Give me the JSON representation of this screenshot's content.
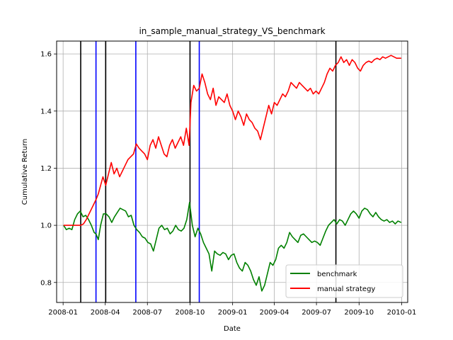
{
  "chart_data": {
    "type": "line",
    "title": "in_sample_manual_strategy_VS_benchmark",
    "xlabel": "Date",
    "ylabel": "Cumulative Return",
    "xlim": [
      "2007-12-18",
      "2010-01-14"
    ],
    "ylim": [
      0.73,
      1.645
    ],
    "grid": true,
    "legend_position": "lower-right",
    "x_ticks": [
      {
        "date": "2008-01-01",
        "label": "2008-01"
      },
      {
        "date": "2008-04-01",
        "label": "2008-04"
      },
      {
        "date": "2008-07-01",
        "label": "2008-07"
      },
      {
        "date": "2008-10-01",
        "label": "2008-10"
      },
      {
        "date": "2009-01-01",
        "label": "2009-01"
      },
      {
        "date": "2009-04-01",
        "label": "2009-04"
      },
      {
        "date": "2009-07-01",
        "label": "2009-07"
      },
      {
        "date": "2009-10-01",
        "label": "2009-10"
      },
      {
        "date": "2010-01-01",
        "label": "2010-01"
      }
    ],
    "y_ticks": [
      {
        "value": 0.8,
        "label": "0.8"
      },
      {
        "value": 1.0,
        "label": "1.0"
      },
      {
        "value": 1.2,
        "label": "1.2"
      },
      {
        "value": 1.4,
        "label": "1.4"
      },
      {
        "value": 1.6,
        "label": "1.6"
      }
    ],
    "vertical_lines": [
      {
        "date": "2008-02-08",
        "color": "#000000"
      },
      {
        "date": "2008-03-12",
        "color": "#0000ff"
      },
      {
        "date": "2008-04-02",
        "color": "#000000"
      },
      {
        "date": "2008-06-06",
        "color": "#0000ff"
      },
      {
        "date": "2008-10-01",
        "color": "#000000"
      },
      {
        "date": "2008-10-21",
        "color": "#0000ff"
      },
      {
        "date": "2009-08-12",
        "color": "#000000"
      }
    ],
    "series": [
      {
        "name": "benchmark",
        "color": "#008000",
        "points": [
          [
            "2008-01-02",
            1.0
          ],
          [
            "2008-01-08",
            0.985
          ],
          [
            "2008-01-14",
            0.99
          ],
          [
            "2008-01-20",
            0.985
          ],
          [
            "2008-01-26",
            1.02
          ],
          [
            "2008-02-01",
            1.04
          ],
          [
            "2008-02-07",
            1.05
          ],
          [
            "2008-02-13",
            1.03
          ],
          [
            "2008-02-19",
            1.035
          ],
          [
            "2008-02-25",
            1.02
          ],
          [
            "2008-03-02",
            1.0
          ],
          [
            "2008-03-08",
            0.975
          ],
          [
            "2008-03-12",
            0.97
          ],
          [
            "2008-03-17",
            0.95
          ],
          [
            "2008-03-22",
            1.0
          ],
          [
            "2008-03-28",
            1.04
          ],
          [
            "2008-04-03",
            1.04
          ],
          [
            "2008-04-09",
            1.03
          ],
          [
            "2008-04-15",
            1.01
          ],
          [
            "2008-04-21",
            1.03
          ],
          [
            "2008-04-27",
            1.045
          ],
          [
            "2008-05-03",
            1.06
          ],
          [
            "2008-05-09",
            1.055
          ],
          [
            "2008-05-15",
            1.05
          ],
          [
            "2008-05-21",
            1.03
          ],
          [
            "2008-05-27",
            1.035
          ],
          [
            "2008-06-02",
            1.0
          ],
          [
            "2008-06-08",
            0.985
          ],
          [
            "2008-06-14",
            0.975
          ],
          [
            "2008-06-20",
            0.96
          ],
          [
            "2008-06-26",
            0.955
          ],
          [
            "2008-07-02",
            0.94
          ],
          [
            "2008-07-08",
            0.935
          ],
          [
            "2008-07-14",
            0.91
          ],
          [
            "2008-07-20",
            0.95
          ],
          [
            "2008-07-26",
            0.99
          ],
          [
            "2008-08-01",
            1.0
          ],
          [
            "2008-08-07",
            0.985
          ],
          [
            "2008-08-13",
            0.99
          ],
          [
            "2008-08-19",
            0.97
          ],
          [
            "2008-08-25",
            0.98
          ],
          [
            "2008-08-31",
            1.0
          ],
          [
            "2008-09-06",
            0.985
          ],
          [
            "2008-09-12",
            0.98
          ],
          [
            "2008-09-18",
            0.99
          ],
          [
            "2008-09-24",
            1.02
          ],
          [
            "2008-09-30",
            1.08
          ],
          [
            "2008-10-06",
            1.0
          ],
          [
            "2008-10-12",
            0.96
          ],
          [
            "2008-10-18",
            0.99
          ],
          [
            "2008-10-24",
            0.97
          ],
          [
            "2008-10-30",
            0.94
          ],
          [
            "2008-11-05",
            0.92
          ],
          [
            "2008-11-11",
            0.9
          ],
          [
            "2008-11-17",
            0.84
          ],
          [
            "2008-11-23",
            0.91
          ],
          [
            "2008-11-29",
            0.9
          ],
          [
            "2008-12-05",
            0.895
          ],
          [
            "2008-12-11",
            0.905
          ],
          [
            "2008-12-17",
            0.9
          ],
          [
            "2008-12-23",
            0.88
          ],
          [
            "2008-12-29",
            0.895
          ],
          [
            "2009-01-04",
            0.9
          ],
          [
            "2009-01-10",
            0.87
          ],
          [
            "2009-01-16",
            0.85
          ],
          [
            "2009-01-22",
            0.84
          ],
          [
            "2009-01-28",
            0.87
          ],
          [
            "2009-02-03",
            0.86
          ],
          [
            "2009-02-09",
            0.84
          ],
          [
            "2009-02-15",
            0.81
          ],
          [
            "2009-02-21",
            0.79
          ],
          [
            "2009-02-27",
            0.82
          ],
          [
            "2009-03-05",
            0.77
          ],
          [
            "2009-03-11",
            0.79
          ],
          [
            "2009-03-17",
            0.83
          ],
          [
            "2009-03-23",
            0.87
          ],
          [
            "2009-03-29",
            0.86
          ],
          [
            "2009-04-04",
            0.88
          ],
          [
            "2009-04-10",
            0.92
          ],
          [
            "2009-04-16",
            0.93
          ],
          [
            "2009-04-22",
            0.92
          ],
          [
            "2009-04-28",
            0.94
          ],
          [
            "2009-05-04",
            0.975
          ],
          [
            "2009-05-10",
            0.96
          ],
          [
            "2009-05-16",
            0.95
          ],
          [
            "2009-05-22",
            0.94
          ],
          [
            "2009-05-28",
            0.965
          ],
          [
            "2009-06-03",
            0.97
          ],
          [
            "2009-06-09",
            0.96
          ],
          [
            "2009-06-15",
            0.95
          ],
          [
            "2009-06-21",
            0.94
          ],
          [
            "2009-06-27",
            0.945
          ],
          [
            "2009-07-03",
            0.94
          ],
          [
            "2009-07-09",
            0.93
          ],
          [
            "2009-07-15",
            0.955
          ],
          [
            "2009-07-21",
            0.98
          ],
          [
            "2009-07-27",
            1.0
          ],
          [
            "2009-08-02",
            1.01
          ],
          [
            "2009-08-08",
            1.02
          ],
          [
            "2009-08-14",
            1.005
          ],
          [
            "2009-08-20",
            1.02
          ],
          [
            "2009-08-26",
            1.015
          ],
          [
            "2009-09-01",
            1.0
          ],
          [
            "2009-09-07",
            1.02
          ],
          [
            "2009-09-13",
            1.04
          ],
          [
            "2009-09-19",
            1.05
          ],
          [
            "2009-09-25",
            1.04
          ],
          [
            "2009-10-01",
            1.025
          ],
          [
            "2009-10-07",
            1.05
          ],
          [
            "2009-10-13",
            1.06
          ],
          [
            "2009-10-19",
            1.055
          ],
          [
            "2009-10-25",
            1.04
          ],
          [
            "2009-10-31",
            1.03
          ],
          [
            "2009-11-06",
            1.045
          ],
          [
            "2009-11-12",
            1.03
          ],
          [
            "2009-11-18",
            1.02
          ],
          [
            "2009-11-24",
            1.015
          ],
          [
            "2009-11-30",
            1.02
          ],
          [
            "2009-12-06",
            1.01
          ],
          [
            "2009-12-12",
            1.015
          ],
          [
            "2009-12-18",
            1.005
          ],
          [
            "2009-12-24",
            1.015
          ],
          [
            "2009-12-31",
            1.01
          ]
        ]
      },
      {
        "name": "manual strategy",
        "color": "#ff0000",
        "points": [
          [
            "2008-01-02",
            1.0
          ],
          [
            "2008-01-20",
            1.0
          ],
          [
            "2008-02-08",
            1.0
          ],
          [
            "2008-02-14",
            1.005
          ],
          [
            "2008-02-20",
            1.02
          ],
          [
            "2008-02-26",
            1.04
          ],
          [
            "2008-03-03",
            1.06
          ],
          [
            "2008-03-09",
            1.08
          ],
          [
            "2008-03-12",
            1.09
          ],
          [
            "2008-03-17",
            1.11
          ],
          [
            "2008-03-22",
            1.14
          ],
          [
            "2008-03-27",
            1.17
          ],
          [
            "2008-04-02",
            1.14
          ],
          [
            "2008-04-08",
            1.18
          ],
          [
            "2008-04-14",
            1.22
          ],
          [
            "2008-04-20",
            1.18
          ],
          [
            "2008-04-26",
            1.2
          ],
          [
            "2008-05-02",
            1.17
          ],
          [
            "2008-05-08",
            1.19
          ],
          [
            "2008-05-14",
            1.21
          ],
          [
            "2008-05-20",
            1.23
          ],
          [
            "2008-05-26",
            1.24
          ],
          [
            "2008-06-01",
            1.25
          ],
          [
            "2008-06-07",
            1.285
          ],
          [
            "2008-06-13",
            1.27
          ],
          [
            "2008-06-19",
            1.26
          ],
          [
            "2008-06-25",
            1.25
          ],
          [
            "2008-07-01",
            1.23
          ],
          [
            "2008-07-07",
            1.28
          ],
          [
            "2008-07-13",
            1.3
          ],
          [
            "2008-07-19",
            1.27
          ],
          [
            "2008-07-25",
            1.31
          ],
          [
            "2008-07-31",
            1.28
          ],
          [
            "2008-08-06",
            1.25
          ],
          [
            "2008-08-12",
            1.24
          ],
          [
            "2008-08-18",
            1.28
          ],
          [
            "2008-08-24",
            1.3
          ],
          [
            "2008-08-30",
            1.27
          ],
          [
            "2008-09-05",
            1.29
          ],
          [
            "2008-09-11",
            1.31
          ],
          [
            "2008-09-17",
            1.28
          ],
          [
            "2008-09-23",
            1.34
          ],
          [
            "2008-09-29",
            1.28
          ],
          [
            "2008-10-03",
            1.43
          ],
          [
            "2008-10-09",
            1.49
          ],
          [
            "2008-10-15",
            1.47
          ],
          [
            "2008-10-21",
            1.48
          ],
          [
            "2008-10-27",
            1.53
          ],
          [
            "2008-11-02",
            1.5
          ],
          [
            "2008-11-08",
            1.46
          ],
          [
            "2008-11-14",
            1.44
          ],
          [
            "2008-11-20",
            1.48
          ],
          [
            "2008-11-26",
            1.42
          ],
          [
            "2008-12-02",
            1.45
          ],
          [
            "2008-12-08",
            1.44
          ],
          [
            "2008-12-14",
            1.43
          ],
          [
            "2008-12-20",
            1.46
          ],
          [
            "2008-12-26",
            1.42
          ],
          [
            "2009-01-01",
            1.4
          ],
          [
            "2009-01-07",
            1.37
          ],
          [
            "2009-01-13",
            1.4
          ],
          [
            "2009-01-19",
            1.38
          ],
          [
            "2009-01-25",
            1.35
          ],
          [
            "2009-01-31",
            1.39
          ],
          [
            "2009-02-06",
            1.37
          ],
          [
            "2009-02-12",
            1.36
          ],
          [
            "2009-02-18",
            1.34
          ],
          [
            "2009-02-24",
            1.33
          ],
          [
            "2009-03-02",
            1.3
          ],
          [
            "2009-03-08",
            1.34
          ],
          [
            "2009-03-14",
            1.38
          ],
          [
            "2009-03-20",
            1.42
          ],
          [
            "2009-03-26",
            1.39
          ],
          [
            "2009-04-01",
            1.43
          ],
          [
            "2009-04-07",
            1.42
          ],
          [
            "2009-04-13",
            1.44
          ],
          [
            "2009-04-19",
            1.46
          ],
          [
            "2009-04-25",
            1.45
          ],
          [
            "2009-05-01",
            1.47
          ],
          [
            "2009-05-07",
            1.5
          ],
          [
            "2009-05-13",
            1.49
          ],
          [
            "2009-05-19",
            1.48
          ],
          [
            "2009-05-25",
            1.5
          ],
          [
            "2009-05-31",
            1.49
          ],
          [
            "2009-06-06",
            1.48
          ],
          [
            "2009-06-12",
            1.47
          ],
          [
            "2009-06-18",
            1.48
          ],
          [
            "2009-06-24",
            1.46
          ],
          [
            "2009-06-30",
            1.47
          ],
          [
            "2009-07-06",
            1.46
          ],
          [
            "2009-07-12",
            1.48
          ],
          [
            "2009-07-18",
            1.5
          ],
          [
            "2009-07-24",
            1.53
          ],
          [
            "2009-07-30",
            1.55
          ],
          [
            "2009-08-05",
            1.54
          ],
          [
            "2009-08-11",
            1.56
          ],
          [
            "2009-08-17",
            1.57
          ],
          [
            "2009-08-23",
            1.59
          ],
          [
            "2009-08-29",
            1.57
          ],
          [
            "2009-09-04",
            1.58
          ],
          [
            "2009-09-10",
            1.56
          ],
          [
            "2009-09-16",
            1.58
          ],
          [
            "2009-09-22",
            1.57
          ],
          [
            "2009-09-28",
            1.55
          ],
          [
            "2009-10-04",
            1.54
          ],
          [
            "2009-10-10",
            1.56
          ],
          [
            "2009-10-16",
            1.57
          ],
          [
            "2009-10-22",
            1.575
          ],
          [
            "2009-10-28",
            1.57
          ],
          [
            "2009-11-03",
            1.58
          ],
          [
            "2009-11-09",
            1.585
          ],
          [
            "2009-11-15",
            1.58
          ],
          [
            "2009-11-21",
            1.59
          ],
          [
            "2009-11-27",
            1.585
          ],
          [
            "2009-12-03",
            1.59
          ],
          [
            "2009-12-09",
            1.595
          ],
          [
            "2009-12-15",
            1.59
          ],
          [
            "2009-12-21",
            1.585
          ],
          [
            "2009-12-31",
            1.585
          ]
        ]
      }
    ]
  }
}
